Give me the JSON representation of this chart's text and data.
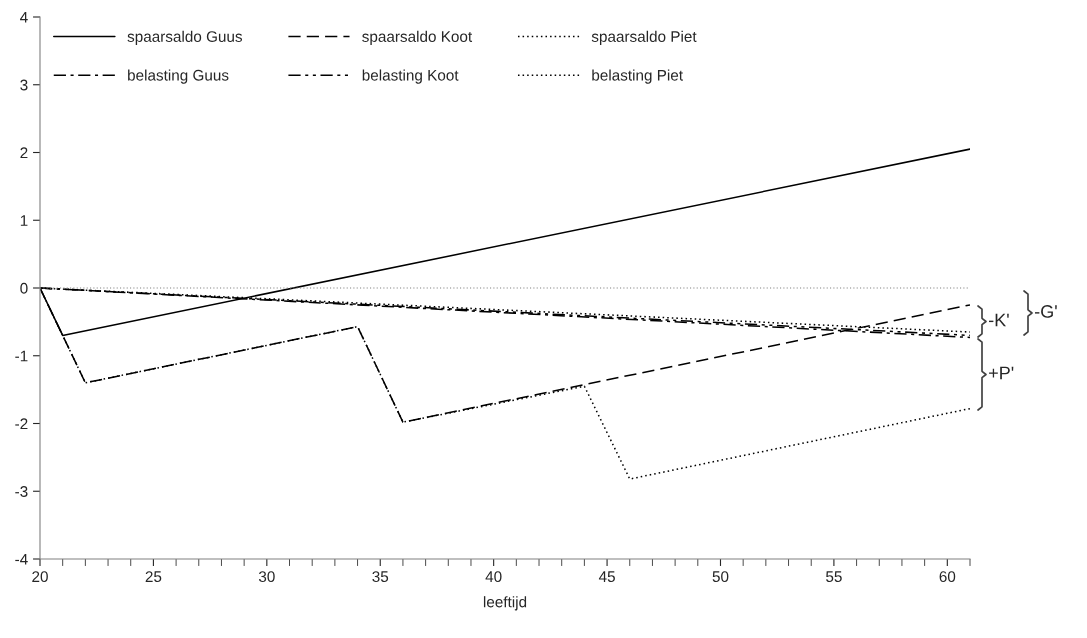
{
  "chart_data": {
    "type": "line",
    "xlabel": "leeftijd",
    "xlim": [
      20,
      61
    ],
    "xticks": [
      20,
      25,
      30,
      35,
      40,
      45,
      50,
      55,
      60
    ],
    "ylim": [
      -4,
      4
    ],
    "yticks": [
      -4,
      -3,
      -2,
      -1,
      0,
      1,
      2,
      3,
      4
    ],
    "grid": false,
    "legend": "top left",
    "marker": "none",
    "series": [
      {
        "name": "spaarsaldo Guus",
        "color": "#000000",
        "line_style": "solid",
        "x": [
          20,
          21,
          61
        ],
        "values": [
          0,
          -0.7,
          2.05
        ]
      },
      {
        "name": "spaarsaldo Koot",
        "color": "#000000",
        "line_style": "dashed",
        "x": [
          20,
          22,
          34,
          36,
          61
        ],
        "values": [
          0,
          -1.4,
          -0.57,
          -1.98,
          -0.25
        ]
      },
      {
        "name": "spaarsaldo Piet",
        "color": "#000000",
        "line_style": "dotted",
        "x": [
          20,
          22,
          34,
          36,
          44,
          46,
          61
        ],
        "values": [
          0,
          -1.4,
          -0.57,
          -1.98,
          -1.45,
          -2.82,
          -1.78
        ]
      },
      {
        "name": "belasting Guus",
        "color": "#000000",
        "line_style": "dashdot",
        "x": [
          20,
          61
        ],
        "values": [
          0,
          -0.73
        ]
      },
      {
        "name": "belasting Koot",
        "color": "#000000",
        "line_style": "dashdotdot",
        "x": [
          20,
          61
        ],
        "values": [
          0,
          -0.7
        ]
      },
      {
        "name": "belasting Piet",
        "color": "#000000",
        "line_style": "dotted",
        "x": [
          20,
          61
        ],
        "values": [
          0,
          -0.65
        ]
      }
    ],
    "ref_lines": [
      {
        "axis": "y",
        "value": 0,
        "color": "#808080",
        "line_style": "dotted"
      }
    ],
    "annotations": [
      "-K'",
      "-G'",
      "+P'"
    ]
  }
}
